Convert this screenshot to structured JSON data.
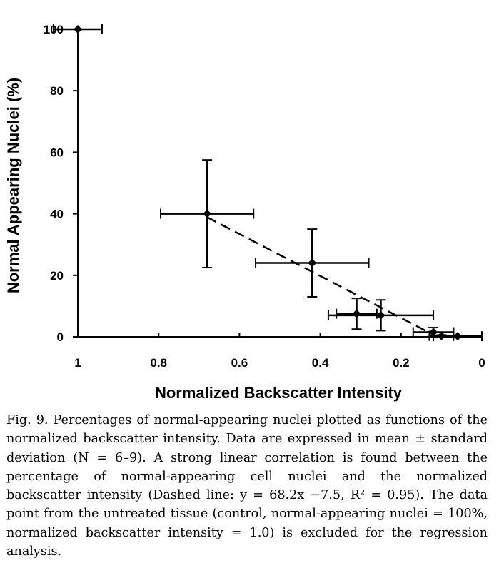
{
  "chart_data": {
    "type": "scatter",
    "xlabel": "Normalized Backscatter Intensity",
    "ylabel": "Normal Appearing Nuclei (%)",
    "x_reversed": true,
    "xlim": [
      1,
      0
    ],
    "ylim": [
      0,
      100
    ],
    "x_ticks": [
      1,
      0.8,
      0.6,
      0.4,
      0.2,
      0
    ],
    "x_tick_labels": [
      "1",
      "0.8",
      "0.6",
      "0.4",
      "0.2",
      "0"
    ],
    "y_ticks": [
      0,
      20,
      40,
      60,
      80,
      100
    ],
    "y_tick_labels": [
      "0",
      "20",
      "40",
      "60",
      "80",
      "100"
    ],
    "grid": false,
    "marker": "diamond",
    "points": [
      {
        "x": 1.0,
        "y": 100,
        "x_err": 0.06,
        "y_err": 0
      },
      {
        "x": 0.68,
        "y": 40,
        "x_err": 0.115,
        "y_err": 17.5
      },
      {
        "x": 0.42,
        "y": 24,
        "x_err": 0.14,
        "y_err": 11
      },
      {
        "x": 0.31,
        "y": 7.5,
        "x_err": 0.05,
        "y_err": 5
      },
      {
        "x": 0.25,
        "y": 7,
        "x_err": 0.13,
        "y_err": 5
      },
      {
        "x": 0.12,
        "y": 1.5,
        "x_err": 0.05,
        "y_err": 1.5
      },
      {
        "x": 0.1,
        "y": 0.3,
        "x_err": 0.03,
        "y_err": 0.3
      },
      {
        "x": 0.06,
        "y": 0.2,
        "x_err": 0.06,
        "y_err": 0
      }
    ],
    "fit_line": {
      "style": "dashed",
      "slope": 68.2,
      "intercept": -7.5,
      "x_range": [
        0.68,
        0.11
      ]
    }
  },
  "caption": {
    "text": "Fig. 9. Percentages of normal-appearing nuclei plotted as functions of the normalized backscatter intensity. Data are expressed in mean ± standard deviation (N = 6–9). A strong linear correlation is found between the percentage of normal-appearing cell nuclei and the normalized backscatter intensity (Dashed line: y = 68.2x −7.5, R² = 0.95). The data point from the untreated tissue (control, normal-appearing nuclei = 100%, normalized backscatter intensity = 1.0) is excluded for the regression analysis."
  }
}
